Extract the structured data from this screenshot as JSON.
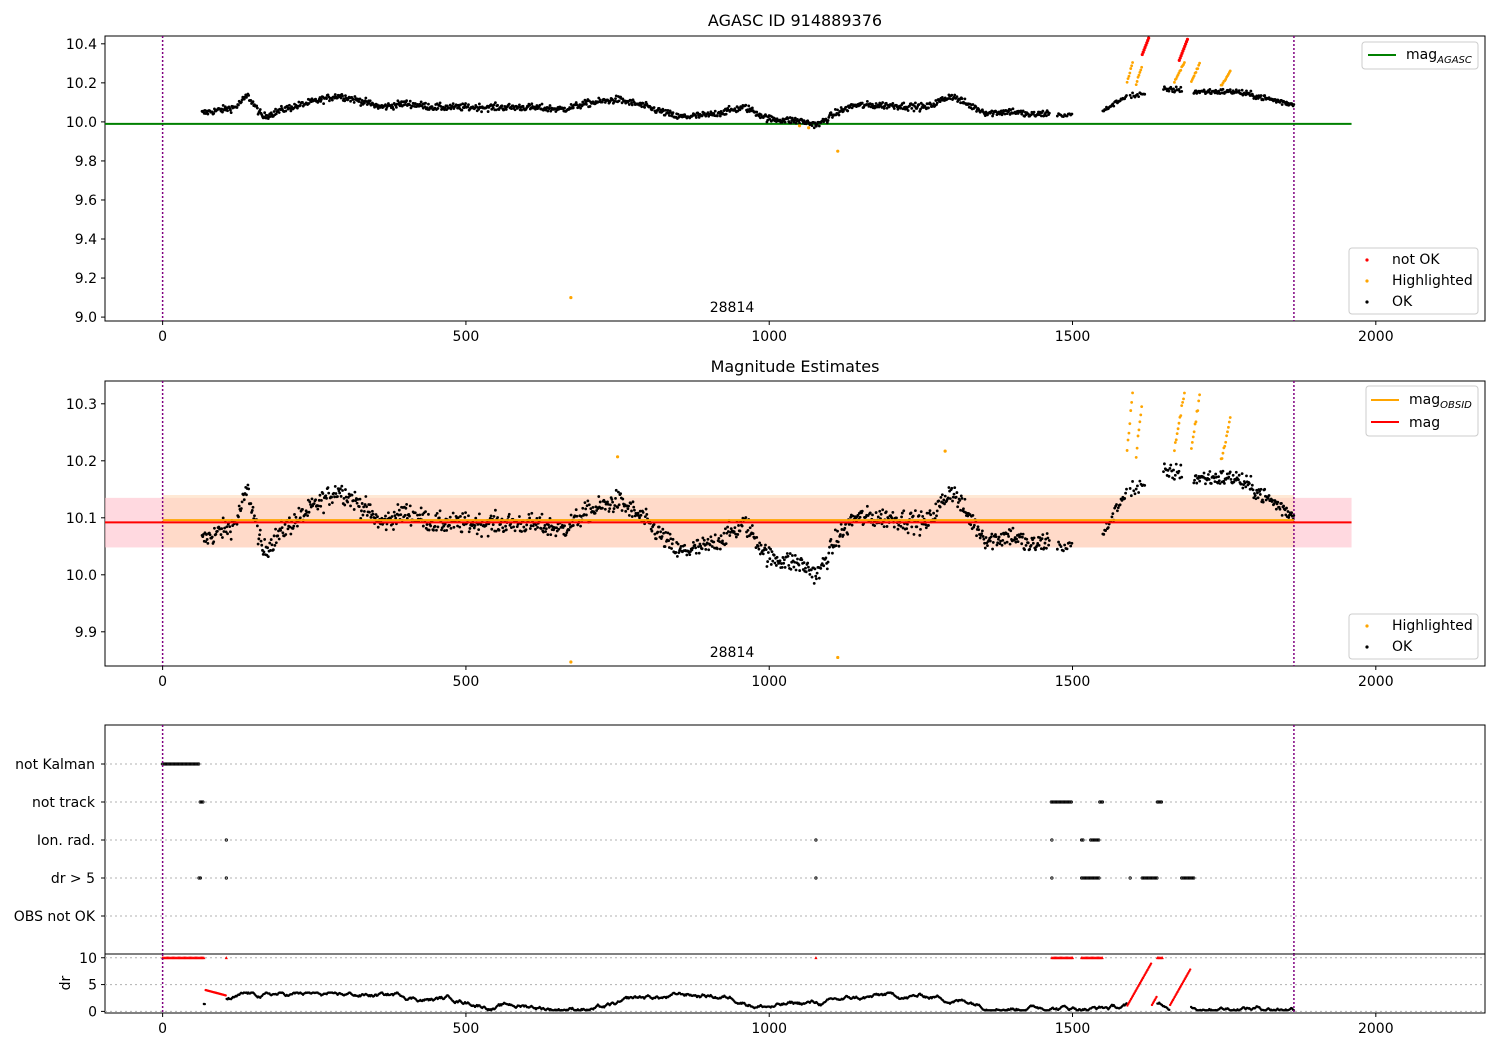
{
  "colors": {
    "ok": "#000000",
    "highlighted": "#ffa500",
    "not_ok": "#ff0000",
    "agasc_line": "#008000",
    "obsid_line": "#ffa500",
    "mag_line": "#ff0000",
    "obs_boundary": "#800080",
    "band_outer": "#ffc0cb",
    "band_inner": "#ffdab9",
    "grid": "#b0b0b0"
  },
  "chart_data": [
    {
      "id": "top",
      "type": "scatter",
      "title": "AGASC ID 914889376",
      "xlim": [
        -95,
        2180
      ],
      "ylim": [
        8.98,
        10.44
      ],
      "xticks": [
        "0",
        "500",
        "1000",
        "1500",
        "2000"
      ],
      "yticks": [
        "9.0",
        "9.2",
        "9.4",
        "9.6",
        "9.8",
        "10.0",
        "10.2",
        "10.4"
      ],
      "obsid_label": "28814",
      "obs_boundaries": [
        0,
        1865
      ],
      "lines": [
        {
          "name": "mag_AGASC",
          "y": 9.99,
          "x": [
            -95,
            1960
          ]
        }
      ],
      "legend_lines": [
        {
          "label": "mag",
          "sub": "AGASC",
          "color": "agasc_line"
        }
      ],
      "legend_points": [
        {
          "label": "not OK",
          "color": "not_ok"
        },
        {
          "label": "Highlighted",
          "color": "highlighted"
        },
        {
          "label": "OK",
          "color": "ok"
        }
      ],
      "outliers": [
        {
          "x": 673,
          "y": 9.1,
          "color": "highlighted"
        },
        {
          "x": 1113,
          "y": 9.85,
          "color": "highlighted"
        },
        {
          "x": 1050,
          "y": 9.98,
          "color": "highlighted"
        },
        {
          "x": 1065,
          "y": 9.97,
          "color": "highlighted"
        }
      ]
    },
    {
      "id": "middle",
      "type": "scatter",
      "title": "Magnitude Estimates",
      "xlim": [
        -95,
        2180
      ],
      "ylim": [
        9.84,
        10.34
      ],
      "xticks": [
        "0",
        "500",
        "1000",
        "1500",
        "2000"
      ],
      "yticks": [
        "9.9",
        "10.0",
        "10.1",
        "10.2",
        "10.3"
      ],
      "obsid_label": "28814",
      "obs_boundaries": [
        0,
        1865
      ],
      "bands": [
        {
          "x": [
            -95,
            1960
          ],
          "y": [
            10.048,
            10.135
          ],
          "color": "band_outer"
        },
        {
          "x": [
            0,
            1865
          ],
          "y": [
            10.048,
            10.14
          ],
          "color": "band_inner"
        }
      ],
      "lines": [
        {
          "name": "mag_OBSID",
          "y": 10.096,
          "x": [
            0,
            1865
          ],
          "color": "obsid_line"
        },
        {
          "name": "mag",
          "y": 10.092,
          "x": [
            -95,
            1960
          ],
          "color": "mag_line"
        }
      ],
      "legend_lines": [
        {
          "label": "mag",
          "sub": "OBSID",
          "color": "obsid_line"
        },
        {
          "label": "mag",
          "sub": "",
          "color": "mag_line"
        }
      ],
      "legend_points": [
        {
          "label": "Highlighted",
          "color": "highlighted"
        },
        {
          "label": "OK",
          "color": "ok"
        }
      ],
      "outliers": [
        {
          "x": 673,
          "y": 9.847,
          "color": "highlighted"
        },
        {
          "x": 1113,
          "y": 9.855,
          "color": "highlighted"
        },
        {
          "x": 750,
          "y": 10.207,
          "color": "highlighted"
        },
        {
          "x": 1290,
          "y": 10.217,
          "color": "highlighted"
        }
      ]
    },
    {
      "id": "flags",
      "type": "scatter",
      "xlim": [
        -95,
        2180
      ],
      "categories": [
        "not Kalman",
        "not track",
        "Ion. rad.",
        "dr > 5",
        "OBS not OK"
      ],
      "obs_boundaries": [
        0,
        1865
      ],
      "flags": {
        "not Kalman": [
          [
            0,
            60
          ]
        ],
        "not track": [
          [
            62,
            68
          ],
          [
            1465,
            1500
          ],
          [
            1545,
            1550
          ],
          [
            1640,
            1648
          ]
        ],
        "Ion. rad.": [
          [
            105,
            106
          ],
          [
            1077,
            1078
          ],
          [
            1466,
            1467
          ],
          [
            1515,
            1518
          ],
          [
            1530,
            1545
          ]
        ],
        "dr > 5": [
          [
            60,
            63
          ],
          [
            105,
            106
          ],
          [
            1077,
            1078
          ],
          [
            1466,
            1467
          ],
          [
            1515,
            1545
          ],
          [
            1595,
            1597
          ],
          [
            1615,
            1640
          ],
          [
            1680,
            1700
          ]
        ],
        "OBS not OK": []
      }
    },
    {
      "id": "dr",
      "type": "line",
      "ylabel": "dr",
      "xlim": [
        -95,
        2180
      ],
      "ylim": [
        -0.3,
        10.7
      ],
      "xticks": [
        "0",
        "500",
        "1000",
        "1500",
        "2000"
      ],
      "yticks": [
        "0",
        "5",
        "10"
      ],
      "obs_boundaries": [
        0,
        1865
      ],
      "clipped_segments": [
        [
          0,
          68
        ],
        [
          105,
          106
        ],
        [
          1077,
          1078
        ],
        [
          1466,
          1500
        ],
        [
          1515,
          1550
        ],
        [
          1640,
          1648
        ]
      ]
    }
  ]
}
